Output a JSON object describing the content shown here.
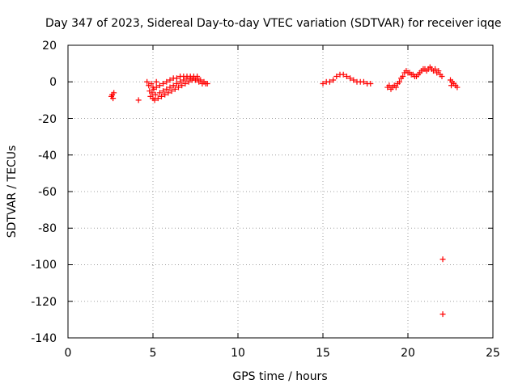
{
  "chart_data": {
    "type": "scatter",
    "title": "Day 347 of 2023, Sidereal Day-to-day VTEC variation (SDTVAR) for receiver iqqe",
    "xlabel": "GPS time / hours",
    "ylabel": "SDTVAR / TECUs",
    "xlim": [
      0,
      25
    ],
    "ylim": [
      -140,
      20
    ],
    "xticks": [
      "0",
      "5",
      "10",
      "15",
      "20",
      "25"
    ],
    "yticks": [
      "20",
      "0",
      "-20",
      "-40",
      "-60",
      "-80",
      "-100",
      "-120",
      "-140"
    ],
    "grid": true,
    "marker": "+",
    "color": "#ff0000",
    "series": [
      {
        "name": "SDTVAR",
        "points": [
          [
            2.55,
            -8
          ],
          [
            2.6,
            -7
          ],
          [
            2.65,
            -9
          ],
          [
            2.7,
            -6
          ],
          [
            4.15,
            -10
          ],
          [
            4.65,
            0
          ],
          [
            4.75,
            -2
          ],
          [
            4.8,
            -5
          ],
          [
            4.85,
            -8
          ],
          [
            4.95,
            -6
          ],
          [
            5.0,
            -9
          ],
          [
            5.05,
            -4
          ],
          [
            5.1,
            -10
          ],
          [
            5.15,
            -7
          ],
          [
            5.2,
            -3
          ],
          [
            5.3,
            -9
          ],
          [
            5.4,
            -6
          ],
          [
            5.5,
            -8
          ],
          [
            5.6,
            -5
          ],
          [
            5.7,
            -7
          ],
          [
            5.8,
            -4
          ],
          [
            5.9,
            -6
          ],
          [
            6.0,
            -3
          ],
          [
            6.1,
            -5
          ],
          [
            6.2,
            -2
          ],
          [
            6.3,
            -4
          ],
          [
            6.4,
            -1
          ],
          [
            6.5,
            -3
          ],
          [
            6.6,
            0
          ],
          [
            6.7,
            -2
          ],
          [
            6.8,
            1
          ],
          [
            6.9,
            -1
          ],
          [
            7.0,
            2
          ],
          [
            7.1,
            0
          ],
          [
            7.2,
            2
          ],
          [
            7.3,
            1
          ],
          [
            7.4,
            3
          ],
          [
            7.5,
            1
          ],
          [
            7.6,
            2
          ],
          [
            7.7,
            0
          ],
          [
            7.8,
            1
          ],
          [
            7.9,
            -1
          ],
          [
            8.0,
            0
          ],
          [
            8.1,
            -1
          ],
          [
            8.2,
            -1
          ],
          [
            5.2,
            0
          ],
          [
            5.4,
            -2
          ],
          [
            5.6,
            -1
          ],
          [
            5.8,
            0
          ],
          [
            6.0,
            1
          ],
          [
            6.2,
            2
          ],
          [
            6.4,
            2
          ],
          [
            6.6,
            3
          ],
          [
            6.8,
            3
          ],
          [
            7.0,
            3
          ],
          [
            7.2,
            3
          ],
          [
            7.4,
            2
          ],
          [
            7.6,
            3
          ],
          [
            4.9,
            -1
          ],
          [
            5.0,
            -3
          ],
          [
            15.0,
            -1
          ],
          [
            15.2,
            0
          ],
          [
            15.4,
            0
          ],
          [
            15.6,
            1
          ],
          [
            15.8,
            3
          ],
          [
            16.0,
            4
          ],
          [
            16.2,
            4
          ],
          [
            16.4,
            3
          ],
          [
            16.6,
            2
          ],
          [
            16.8,
            1
          ],
          [
            17.0,
            0
          ],
          [
            17.2,
            0
          ],
          [
            17.4,
            0
          ],
          [
            17.6,
            -1
          ],
          [
            17.8,
            -1
          ],
          [
            18.8,
            -3
          ],
          [
            18.9,
            -2
          ],
          [
            19.0,
            -4
          ],
          [
            19.1,
            -3
          ],
          [
            19.2,
            -2
          ],
          [
            19.3,
            -3
          ],
          [
            19.4,
            -1
          ],
          [
            19.5,
            0
          ],
          [
            19.6,
            2
          ],
          [
            19.7,
            3
          ],
          [
            19.8,
            5
          ],
          [
            19.9,
            6
          ],
          [
            20.0,
            5
          ],
          [
            20.1,
            5
          ],
          [
            20.2,
            4
          ],
          [
            20.3,
            4
          ],
          [
            20.4,
            3
          ],
          [
            20.5,
            3
          ],
          [
            20.6,
            4
          ],
          [
            20.7,
            5
          ],
          [
            20.8,
            6
          ],
          [
            20.9,
            7
          ],
          [
            21.0,
            7
          ],
          [
            21.1,
            6
          ],
          [
            21.2,
            7
          ],
          [
            21.3,
            8
          ],
          [
            21.4,
            7
          ],
          [
            21.5,
            6
          ],
          [
            21.6,
            7
          ],
          [
            21.7,
            5
          ],
          [
            21.8,
            6
          ],
          [
            21.9,
            4
          ],
          [
            22.0,
            3
          ],
          [
            22.05,
            -97
          ],
          [
            22.05,
            -127
          ],
          [
            22.5,
            1
          ],
          [
            22.55,
            -2
          ],
          [
            22.6,
            0
          ],
          [
            22.7,
            -1
          ],
          [
            22.8,
            -2
          ],
          [
            22.9,
            -3
          ]
        ]
      }
    ]
  }
}
